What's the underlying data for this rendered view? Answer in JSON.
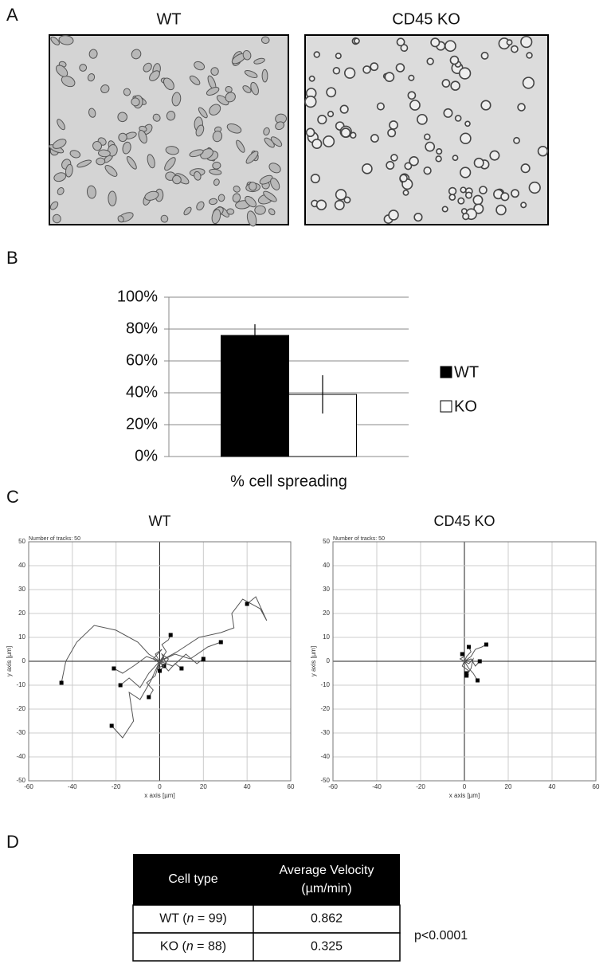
{
  "panels": {
    "a": "A",
    "b": "B",
    "c": "C",
    "d": "D"
  },
  "images": {
    "titles": [
      "WT",
      "CD45 KO"
    ]
  },
  "chart_data": [
    {
      "type": "bar",
      "categories": [
        "% cell spreading"
      ],
      "series": [
        {
          "name": "WT",
          "color": "#000000",
          "values": [
            76
          ],
          "errors": [
            7
          ]
        },
        {
          "name": "KO",
          "color": "#ffffff",
          "values": [
            39
          ],
          "errors": [
            12
          ]
        }
      ],
      "ylim": [
        0,
        100
      ],
      "yticks": [
        {
          "value": 0,
          "label": "0%"
        },
        {
          "value": 20,
          "label": "20%"
        },
        {
          "value": 40,
          "label": "40%"
        },
        {
          "value": 60,
          "label": "60%"
        },
        {
          "value": 80,
          "label": "80%"
        },
        {
          "value": 100,
          "label": "100%"
        }
      ],
      "grid": true,
      "legend": "right"
    },
    {
      "type": "tracks",
      "title": "WT",
      "note": "Number of tracks: 50",
      "xlabel": "x axis [µm]",
      "ylabel": "y axis [µm]",
      "xlim": [
        -60,
        60
      ],
      "ylim": [
        -50,
        50
      ],
      "xticks": [
        -60,
        -40,
        -20,
        0,
        20,
        40,
        60
      ],
      "yticks": [
        -50,
        -40,
        -30,
        -20,
        -10,
        0,
        10,
        20,
        30,
        40,
        50
      ],
      "grid": true,
      "color": "#555555",
      "series": [
        {
          "x": [
            0,
            -5,
            -10,
            -20,
            -30,
            -38,
            -43,
            -45
          ],
          "y": [
            0,
            3,
            8,
            13,
            15,
            8,
            0,
            -9
          ]
        },
        {
          "x": [
            0,
            8,
            18,
            28,
            34,
            33,
            38,
            46,
            49,
            44,
            40
          ],
          "y": [
            0,
            4,
            10,
            12,
            14,
            20,
            26,
            22,
            17,
            27,
            24
          ]
        },
        {
          "x": [
            0,
            -4,
            -9,
            -14,
            -12,
            -17,
            -22
          ],
          "y": [
            0,
            -8,
            -16,
            -13,
            -25,
            -32,
            -27
          ]
        },
        {
          "x": [
            0,
            -6,
            -12,
            -17,
            -21
          ],
          "y": [
            0,
            2,
            -2,
            -5,
            -3
          ]
        },
        {
          "x": [
            0,
            -5,
            -9,
            -14,
            -18
          ],
          "y": [
            0,
            -5,
            -11,
            -7,
            -10
          ]
        },
        {
          "x": [
            0,
            7,
            14,
            22,
            28
          ],
          "y": [
            0,
            3,
            1,
            6,
            8
          ]
        },
        {
          "x": [
            0,
            6,
            12,
            17,
            20
          ],
          "y": [
            0,
            -2,
            3,
            -1,
            1
          ]
        },
        {
          "x": [
            0,
            3,
            1,
            4,
            5
          ],
          "y": [
            0,
            4,
            7,
            9,
            11
          ]
        },
        {
          "x": [
            0,
            4,
            7,
            10
          ],
          "y": [
            0,
            -4,
            -1,
            -3
          ]
        },
        {
          "x": [
            0,
            -2,
            -6,
            -3,
            -5
          ],
          "y": [
            0,
            -6,
            -9,
            -12,
            -15
          ]
        },
        {
          "x": [
            0,
            2,
            -1,
            3,
            1,
            4,
            2
          ],
          "y": [
            0,
            2,
            -3,
            -1,
            3,
            1,
            -2
          ]
        },
        {
          "x": [
            0,
            -2,
            1,
            -3,
            2,
            0
          ],
          "y": [
            0,
            3,
            5,
            1,
            -2,
            -4
          ]
        }
      ]
    },
    {
      "type": "tracks",
      "title": "CD45 KO",
      "note": "Number of tracks: 50",
      "xlabel": "x axis [µm]",
      "ylabel": "y axis [µm]",
      "xlim": [
        -60,
        60
      ],
      "ylim": [
        -50,
        50
      ],
      "xticks": [
        -60,
        -40,
        -20,
        0,
        20,
        40,
        60
      ],
      "yticks": [
        -50,
        -40,
        -30,
        -20,
        -10,
        0,
        10,
        20,
        30,
        40,
        50
      ],
      "grid": true,
      "color": "#555555",
      "series": [
        {
          "x": [
            0,
            3,
            5,
            8,
            10
          ],
          "y": [
            0,
            2,
            5,
            6,
            7
          ]
        },
        {
          "x": [
            0,
            1,
            3,
            2
          ],
          "y": [
            0,
            2,
            4,
            6
          ]
        },
        {
          "x": [
            0,
            2,
            4,
            6
          ],
          "y": [
            0,
            -3,
            -5,
            -8
          ]
        },
        {
          "x": [
            0,
            3,
            5,
            7
          ],
          "y": [
            0,
            1,
            -2,
            0
          ]
        },
        {
          "x": [
            0,
            -1,
            2,
            1
          ],
          "y": [
            0,
            -2,
            -4,
            -5
          ]
        },
        {
          "x": [
            0,
            -2,
            0,
            -1
          ],
          "y": [
            0,
            1,
            2,
            3
          ]
        },
        {
          "x": [
            0,
            2,
            4,
            3,
            1
          ],
          "y": [
            0,
            -1,
            1,
            -3,
            -6
          ]
        }
      ]
    }
  ],
  "table": {
    "header": [
      "Cell type",
      [
        "Average Velocity",
        "(µm/min)"
      ]
    ],
    "rows": [
      [
        {
          "pre": "WT (",
          "italic": "n",
          "post": " = 99)"
        },
        "0.862"
      ],
      [
        {
          "pre": "KO (",
          "italic": "n",
          "post": " = 88)"
        },
        "0.325"
      ]
    ],
    "note": "p<0.0001"
  }
}
